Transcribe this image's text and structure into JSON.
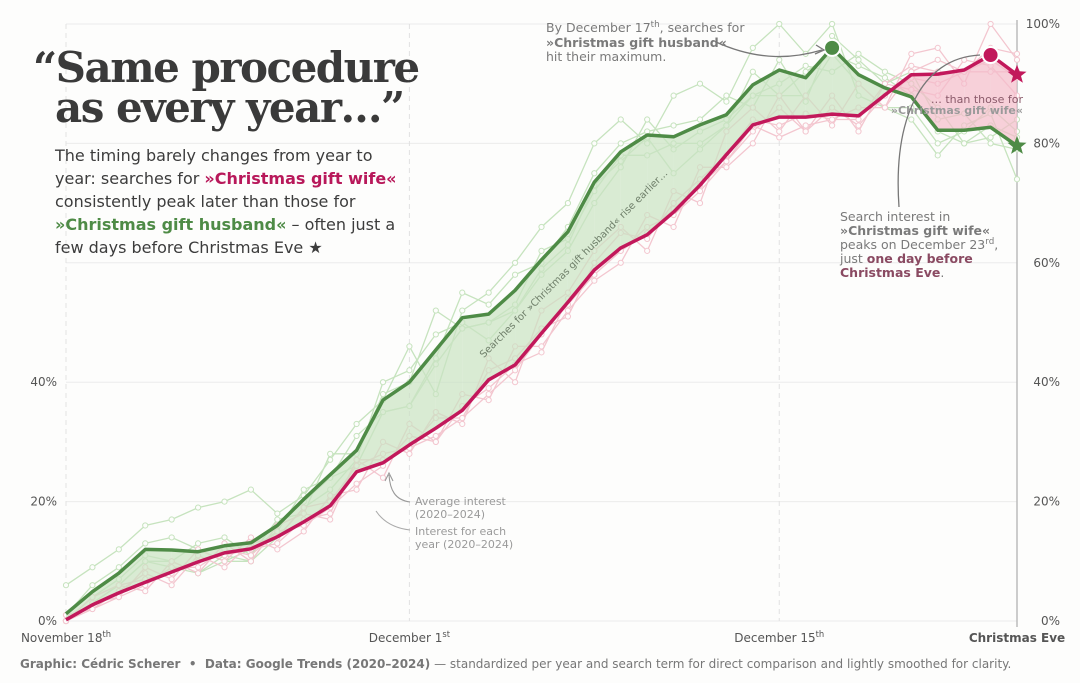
{
  "chart_data": {
    "type": "line",
    "title": [
      "“Same procedure",
      "as every year…”"
    ],
    "subtitle": [
      "The timing barely changes from year to",
      "year: searches for ",
      "»Christmas gift wife«",
      "consistently peak later than those for",
      "»Christmas gift husband«",
      " – often just a",
      "few days before Christmas Eve ★"
    ],
    "categories": [
      "November 18th",
      null,
      null,
      null,
      null,
      null,
      null,
      null,
      null,
      null,
      null,
      null,
      null,
      "December 1st",
      null,
      null,
      null,
      null,
      null,
      null,
      null,
      null,
      null,
      null,
      null,
      null,
      null,
      "December 15th",
      null,
      null,
      null,
      null,
      null,
      null,
      null,
      null,
      "Christmas Eve"
    ],
    "series": [
      {
        "color": "#4e8b46",
        "fill": "#c9e2c2",
        "values": [
          1.2,
          4.9,
          8,
          12,
          11.9,
          11.6,
          12.6,
          13.1,
          16,
          20.4,
          24.5,
          28.6,
          37,
          40,
          45.4,
          50.8,
          51.4,
          55.4,
          60.5,
          65.2,
          73.5,
          78.6,
          81.4,
          81.1,
          83.1,
          84.8,
          89.8,
          92.3,
          91,
          96,
          91.5,
          89.3,
          87.8,
          82.2,
          82.2,
          82.7,
          79.6
        ]
      },
      {
        "color": "#c2185b",
        "fill": "#f3bccb",
        "values": [
          0.2,
          2.7,
          4.7,
          6.5,
          8.2,
          9.9,
          11.4,
          12.1,
          14.1,
          16.6,
          19.3,
          25,
          26.5,
          29.5,
          32.3,
          35.3,
          40.4,
          42.9,
          48.2,
          53.4,
          58.8,
          62.5,
          64.7,
          68.5,
          73,
          78.1,
          83.1,
          84.4,
          84.4,
          84.9,
          84.6,
          88.1,
          91.5,
          91.6,
          92.3,
          94.8,
          91.5
        ]
      }
    ],
    "year_series": [
      {
        "color": "#c6e3be",
        "values": [
          6,
          9,
          12,
          16,
          17,
          19,
          20,
          22,
          18,
          21,
          27,
          33,
          37,
          46,
          38,
          52,
          55,
          60,
          66,
          70,
          80,
          84,
          80,
          88,
          90,
          87,
          96,
          100,
          95,
          100,
          88,
          86,
          84,
          78,
          83,
          85,
          74
        ]
      },
      {
        "color": "#c6e3be",
        "values": [
          0,
          3,
          6,
          10,
          9,
          8,
          11,
          10,
          14,
          19,
          22,
          27,
          40,
          42,
          48,
          50,
          47,
          52,
          58,
          62,
          70,
          76,
          84,
          79,
          82,
          84,
          88,
          90,
          93,
          92,
          95,
          92,
          90,
          86,
          80,
          81,
          84
        ]
      },
      {
        "color": "#c6e3be",
        "values": [
          1,
          6,
          9,
          13,
          14,
          12,
          10,
          12,
          15,
          22,
          24,
          31,
          35,
          36,
          44,
          55,
          53,
          58,
          60,
          66,
          75,
          80,
          82,
          83,
          84,
          88,
          86,
          94,
          87,
          98,
          94,
          90,
          92,
          84,
          85,
          80,
          79
        ]
      },
      {
        "color": "#c6e3be",
        "values": [
          0,
          4,
          7,
          11,
          10,
          13,
          14,
          11,
          17,
          18,
          28,
          28,
          38,
          40,
          52,
          49,
          50,
          53,
          62,
          64,
          72,
          78,
          78,
          80,
          80,
          83,
          92,
          88,
          92,
          95,
          90,
          86,
          86,
          80,
          82,
          86,
          82
        ]
      },
      {
        "color": "#c6e3be",
        "values": [
          0,
          3,
          6,
          10,
          10,
          8,
          10,
          10,
          16,
          20,
          24,
          26,
          35,
          36,
          43,
          49,
          50,
          52,
          59,
          63,
          73,
          77,
          81,
          75,
          79,
          83,
          88,
          88,
          88,
          95,
          93,
          91,
          88,
          82,
          80,
          83,
          81
        ]
      },
      {
        "color": "#f3c6cf",
        "values": [
          0,
          2,
          4,
          9,
          7,
          12,
          10,
          14,
          12,
          15,
          21,
          22,
          30,
          28,
          35,
          33,
          44,
          40,
          52,
          55,
          62,
          66,
          62,
          72,
          70,
          82,
          86,
          82,
          88,
          83,
          90,
          86,
          95,
          96,
          90,
          100,
          94
        ]
      },
      {
        "color": "#f3c6cf",
        "values": [
          0,
          4,
          6,
          5,
          10,
          8,
          13,
          10,
          16,
          18,
          17,
          27,
          24,
          33,
          30,
          38,
          37,
          46,
          46,
          52,
          57,
          60,
          68,
          66,
          76,
          76,
          80,
          88,
          82,
          88,
          82,
          90,
          89,
          88,
          94,
          93,
          88
        ]
      },
      {
        "color": "#f3c6cf",
        "values": [
          1,
          2,
          5,
          8,
          6,
          11,
          9,
          13,
          14,
          19,
          20,
          26,
          28,
          29,
          34,
          34,
          42,
          44,
          49,
          51,
          60,
          65,
          64,
          70,
          74,
          78,
          84,
          83,
          85,
          84,
          86,
          86,
          92,
          94,
          92,
          96,
          95
        ]
      },
      {
        "color": "#f3c6cf",
        "values": [
          0,
          3,
          4,
          6,
          9,
          9,
          12,
          11,
          15,
          16,
          19,
          23,
          26,
          31,
          30,
          36,
          39,
          43,
          45,
          54,
          58,
          62,
          66,
          68,
          72,
          77,
          82,
          86,
          82,
          86,
          83,
          88,
          91,
          90,
          92,
          94,
          91
        ]
      },
      {
        "color": "#f3c6cf",
        "values": [
          0,
          4,
          6,
          7,
          8,
          10,
          11,
          12,
          13,
          17,
          18,
          27,
          27,
          29,
          31,
          34,
          38,
          42,
          48,
          53,
          58,
          62,
          65,
          69,
          73,
          77,
          83,
          81,
          83,
          84,
          84,
          90,
          93,
          92,
          92,
          92,
          92
        ]
      }
    ],
    "ylim": [
      0,
      100
    ],
    "yticks": [
      {
        "value": 0,
        "label": "0%"
      },
      {
        "value": 20,
        "label": "20%"
      },
      {
        "value": 40,
        "label": "40%"
      },
      {
        "value": 60,
        "label": "60%"
      },
      {
        "value": 80,
        "label": "80%"
      },
      {
        "value": 100,
        "label": "100%"
      }
    ],
    "grid": true,
    "annotations": {
      "husband_peak": [
        "By December 17th, searches for",
        "»Christmas gift husband«",
        "hit their maximum."
      ],
      "than_those": [
        "… than those for",
        "»Christmas gift wife«"
      ],
      "wife_peak": [
        "Search interest in",
        "»Christmas gift wife«",
        "peaks on December 23rd,",
        "just ",
        "one day before",
        "Christmas Eve",
        "."
      ],
      "rise_earlier": "Searches for »Christmas gift husband« rise earlier…",
      "average": [
        "Average interest",
        "(2020–2024)"
      ],
      "each_year": [
        "Interest for each",
        "year (2020–2024)"
      ]
    },
    "footer": [
      "Graphic: Cédric Scherer",
      "  •  ",
      "Data: Google Trends (2020–2024)",
      " — standardized per year and search term for direct comparison and lightly smoothed for clarity."
    ]
  }
}
